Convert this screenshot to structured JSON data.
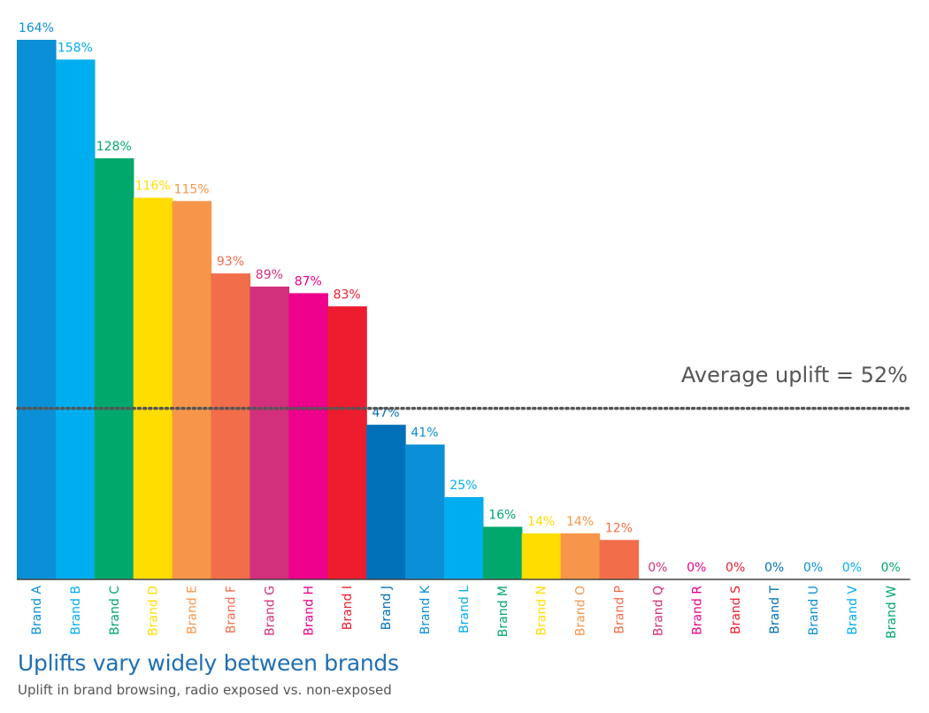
{
  "chart_data": {
    "type": "bar",
    "title": "Uplifts vary widely between brands",
    "subtitle": "Uplift in brand browsing, radio exposed vs. non-exposed",
    "categories": [
      "Brand A",
      "Brand B",
      "Brand C",
      "Brand D",
      "Brand E",
      "Brand F",
      "Brand G",
      "Brand H",
      "Brand I",
      "Brand J",
      "Brand K",
      "Brand L",
      "Brand M",
      "Brand N",
      "Brand O",
      "Brand P",
      "Brand Q",
      "Brand R",
      "Brand S",
      "Brand T",
      "Brand U",
      "Brand V",
      "Brand W"
    ],
    "values": [
      164,
      158,
      128,
      116,
      115,
      93,
      89,
      87,
      83,
      47,
      41,
      25,
      16,
      14,
      14,
      12,
      0,
      0,
      0,
      0,
      0,
      0,
      0
    ],
    "value_labels": [
      "164%",
      "158%",
      "128%",
      "116%",
      "115%",
      "93%",
      "89%",
      "87%",
      "83%",
      "47%",
      "41%",
      "25%",
      "16%",
      "14%",
      "14%",
      "12%",
      "0%",
      "0%",
      "0%",
      "0%",
      "0%",
      "0%",
      "0%"
    ],
    "colors": [
      "#0b8fd6",
      "#00aeef",
      "#00a86b",
      "#ffdd00",
      "#f7964a",
      "#f26d4a",
      "#d22f7c",
      "#ec008c",
      "#ed1c2e",
      "#0070b8",
      "#0b8fd6",
      "#00aeef",
      "#00a86b",
      "#ffdd00",
      "#f7964a",
      "#f26d4a",
      "#d22f7c",
      "#ec008c",
      "#ed1c2e",
      "#0070b8",
      "#0b8fd6",
      "#00aeef",
      "#00a86b"
    ],
    "average_line": {
      "value": 52,
      "label": "Average uplift = 52%"
    },
    "ylim": [
      0,
      164
    ],
    "xlabel": "",
    "ylabel": "",
    "grid": false,
    "legend": "none"
  }
}
